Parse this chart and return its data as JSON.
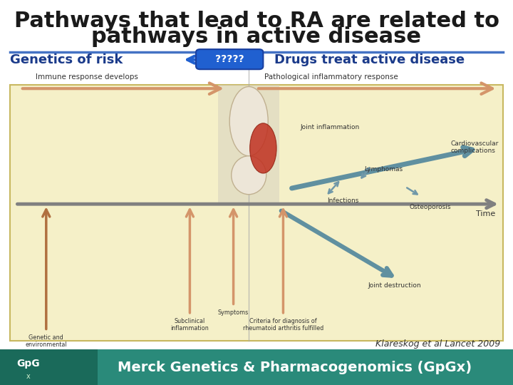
{
  "title_line1": "Pathways that lead to RA are related to",
  "title_line2": "pathways in active disease",
  "title_fontsize": 22,
  "title_color": "#1a1a1a",
  "bg_color": "#ffffff",
  "blue_line_color": "#4472c4",
  "left_header": "Genetics of risk",
  "right_header": "Drugs treat active disease",
  "header_color": "#1a3a8a",
  "header_fontsize": 13,
  "question_marks": "?????",
  "qmark_bg": "#2060d0",
  "qmark_color": "#ffffff",
  "diagram_bg": "#f5f0c8",
  "diagram_border": "#c8b860",
  "top_label_left": "Immune response develops",
  "top_label_right": "Pathological inflammatory response",
  "top_arrow_color": "#d4956a",
  "timeline_color": "#808080",
  "time_label": "Time",
  "footer_bg_color": "#2a8a7a",
  "footer_text": "Merck Genetics & Pharmacogenomics (GpGx)",
  "footer_text_color": "#ffffff",
  "footer_fontsize": 14,
  "citation": "Klareskog et al Lancet 2009",
  "citation_fontsize": 9,
  "vertical_line_x": 0.485
}
